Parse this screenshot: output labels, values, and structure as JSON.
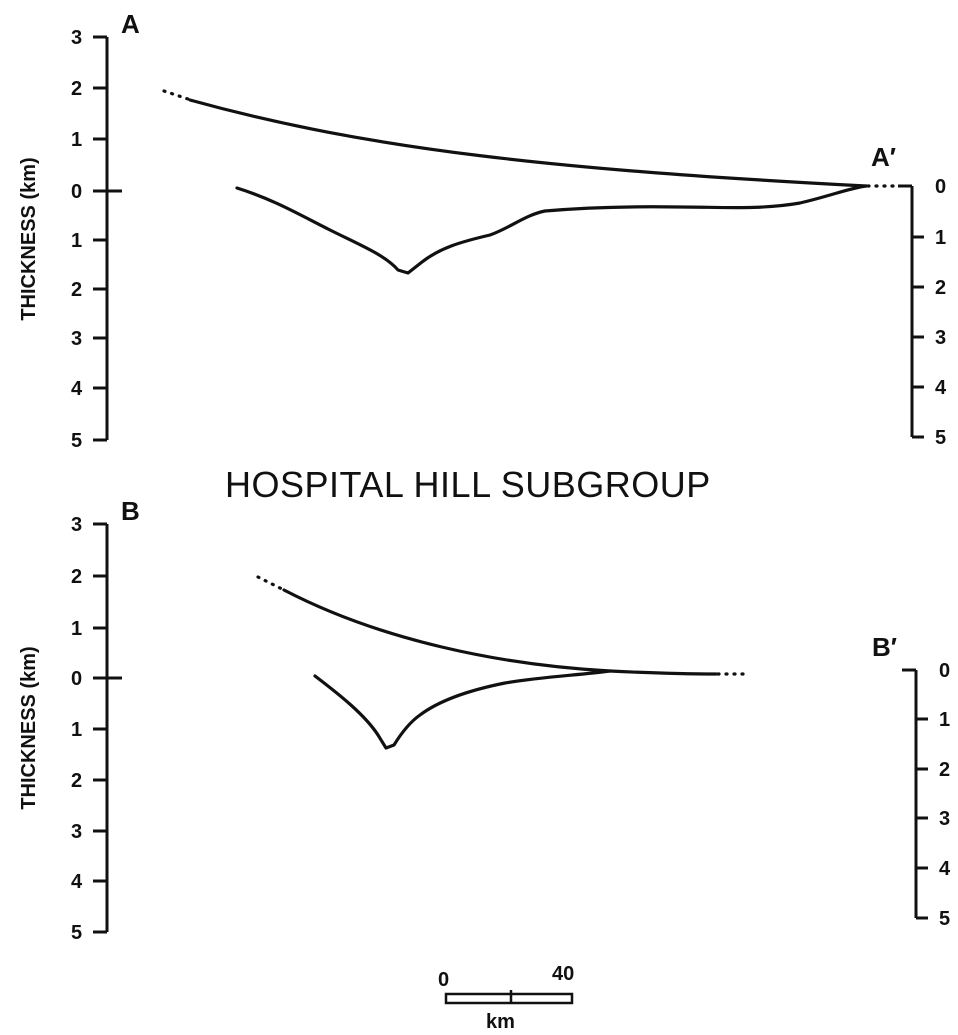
{
  "title": "HOSPITAL HILL SUBGROUP",
  "panel_top": {
    "label_left": "A",
    "label_right": "A′",
    "ylabel": "THICKNESS (km)",
    "left_ticks_up": [
      "3",
      "2",
      "1",
      "0"
    ],
    "left_ticks_down": [
      "1",
      "2",
      "3",
      "4",
      "5"
    ],
    "right_ticks": [
      "0",
      "1",
      "2",
      "3",
      "4",
      "5"
    ]
  },
  "panel_bottom": {
    "label_left": "B",
    "label_right": "B′",
    "ylabel": "THICKNESS (km)",
    "left_ticks_up": [
      "3",
      "2",
      "1",
      "0"
    ],
    "left_ticks_down": [
      "1",
      "2",
      "3",
      "4",
      "5"
    ],
    "right_ticks": [
      "0",
      "1",
      "2",
      "3",
      "4",
      "5"
    ]
  },
  "scale_bar": {
    "start_label": "0",
    "end_label": "40",
    "unit": "km"
  }
}
